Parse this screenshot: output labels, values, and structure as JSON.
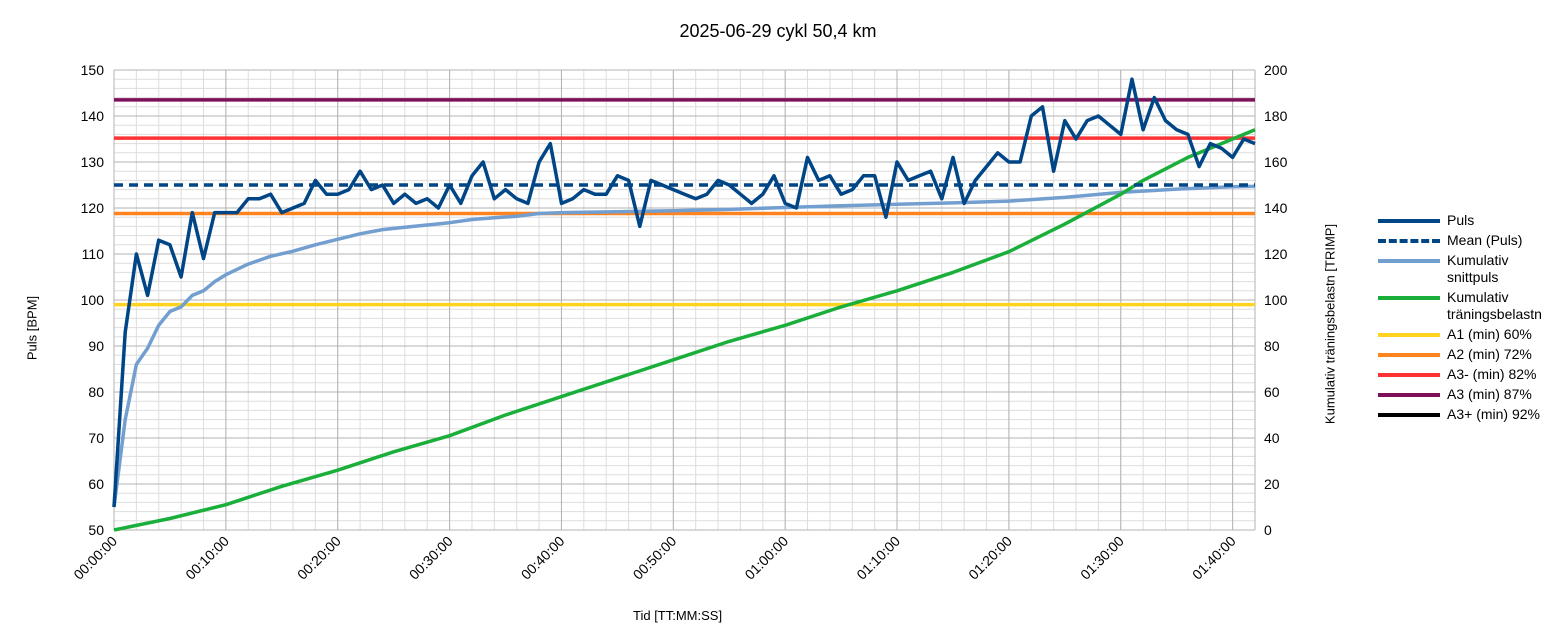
{
  "chart_data": {
    "type": "line",
    "title": "2025-06-29 cykl 50,4 km",
    "xlabel": "Tid [TT:MM:SS]",
    "ylabel": "Puls [BPM]",
    "y2label": "Kumulativ träningsbelastn [TRIMP]",
    "x_unit": "minutes",
    "xlim": [
      0,
      102
    ],
    "xticks": [
      {
        "value": 0,
        "label": "00:00:00"
      },
      {
        "value": 10,
        "label": "00:10:00"
      },
      {
        "value": 20,
        "label": "00:20:00"
      },
      {
        "value": 30,
        "label": "00:30:00"
      },
      {
        "value": 40,
        "label": "00:40:00"
      },
      {
        "value": 50,
        "label": "00:50:00"
      },
      {
        "value": 60,
        "label": "01:00:00"
      },
      {
        "value": 70,
        "label": "01:10:00"
      },
      {
        "value": 80,
        "label": "01:20:00"
      },
      {
        "value": 90,
        "label": "01:30:00"
      },
      {
        "value": 100,
        "label": "01:40:00"
      }
    ],
    "ylim": [
      50,
      150
    ],
    "yticks": [
      50,
      60,
      70,
      80,
      90,
      100,
      110,
      120,
      130,
      140,
      150
    ],
    "y2lim": [
      0,
      200
    ],
    "y2ticks": [
      0,
      20,
      40,
      60,
      80,
      100,
      120,
      140,
      160,
      180,
      200
    ],
    "grid": true,
    "legend_position": "right",
    "series": [
      {
        "name": "Puls",
        "axis": "left",
        "color": "#004586",
        "style": "solid",
        "x": [
          0,
          1,
          2,
          3,
          4,
          5,
          6,
          7,
          8,
          9,
          10,
          11,
          12,
          13,
          14,
          15,
          16,
          17,
          18,
          19,
          20,
          21,
          22,
          23,
          24,
          25,
          26,
          27,
          28,
          29,
          30,
          31,
          32,
          33,
          34,
          35,
          36,
          37,
          38,
          39,
          40,
          41,
          42,
          43,
          44,
          45,
          46,
          47,
          48,
          49,
          50,
          51,
          52,
          53,
          54,
          55,
          56,
          57,
          58,
          59,
          60,
          61,
          62,
          63,
          64,
          65,
          66,
          67,
          68,
          69,
          70,
          71,
          72,
          73,
          74,
          75,
          76,
          77,
          78,
          79,
          80,
          81,
          82,
          83,
          84,
          85,
          86,
          87,
          88,
          89,
          90,
          91,
          92,
          93,
          94,
          95,
          96,
          97,
          98,
          99,
          100,
          101,
          102
        ],
        "y": [
          55,
          93,
          110,
          101,
          113,
          112,
          105,
          119,
          109,
          119,
          119,
          119,
          122,
          122,
          123,
          119,
          120,
          121,
          126,
          123,
          123,
          124,
          128,
          124,
          125,
          121,
          123,
          121,
          122,
          120,
          125,
          121,
          127,
          130,
          122,
          124,
          122,
          121,
          130,
          134,
          121,
          122,
          124,
          123,
          123,
          127,
          126,
          116,
          126,
          125,
          124,
          123,
          122,
          123,
          126,
          125,
          123,
          121,
          123,
          127,
          121,
          120,
          131,
          126,
          127,
          123,
          124,
          127,
          127,
          118,
          130,
          126,
          127,
          128,
          122,
          131,
          121,
          126,
          129,
          132,
          130,
          130,
          140,
          142,
          128,
          139,
          135,
          139,
          140,
          138,
          136,
          148,
          137,
          144,
          139,
          137,
          136,
          129,
          134,
          133,
          131,
          135,
          134
        ]
      },
      {
        "name": "Mean (Puls)",
        "axis": "left",
        "color": "#004586",
        "style": "dashed",
        "x": [
          0,
          102
        ],
        "y": [
          125,
          125
        ]
      },
      {
        "name": "Kumulativ snittpuls",
        "axis": "left",
        "color": "#729fcf",
        "style": "solid",
        "x": [
          0,
          1,
          2,
          3,
          4,
          5,
          6,
          7,
          8,
          9,
          10,
          12,
          14,
          16,
          18,
          20,
          22,
          24,
          26,
          28,
          30,
          32,
          34,
          36,
          38,
          40,
          45,
          50,
          55,
          60,
          65,
          70,
          75,
          80,
          85,
          90,
          95,
          100,
          102
        ],
        "y": [
          55,
          74,
          86,
          89.5,
          94.5,
          97.5,
          98.5,
          101,
          102,
          104,
          105.5,
          107.8,
          109.5,
          110.6,
          112,
          113.2,
          114.4,
          115.3,
          115.8,
          116.3,
          116.8,
          117.5,
          117.9,
          118.2,
          118.8,
          119,
          119.2,
          119.4,
          119.7,
          120.1,
          120.5,
          120.8,
          121.1,
          121.5,
          122.3,
          123.4,
          124.1,
          124.6,
          124.7
        ]
      },
      {
        "name": "Kumulativ träningsbelastn",
        "axis": "right",
        "color": "#1aaf3a",
        "style": "solid",
        "x": [
          0,
          5,
          10,
          15,
          20,
          25,
          30,
          35,
          40,
          45,
          50,
          55,
          60,
          65,
          70,
          75,
          80,
          85,
          90,
          92,
          94,
          96,
          98,
          100,
          102
        ],
        "y": [
          0,
          5,
          11,
          19,
          26,
          34,
          41,
          50,
          58,
          66,
          74,
          82,
          89,
          97,
          104,
          112,
          121,
          133,
          146,
          152,
          157,
          162,
          166,
          170,
          174
        ]
      },
      {
        "name": "A1 (min) 60%",
        "axis": "left",
        "color": "#ffd320",
        "style": "solid",
        "x": [
          0,
          102
        ],
        "y": [
          99,
          99
        ]
      },
      {
        "name": "A2 (min) 72%",
        "axis": "left",
        "color": "#ff8420",
        "style": "solid",
        "x": [
          0,
          102
        ],
        "y": [
          118.8,
          118.8
        ]
      },
      {
        "name": "A3- (min) 82%",
        "axis": "left",
        "color": "#ff3333",
        "style": "solid",
        "x": [
          0,
          102
        ],
        "y": [
          135.2,
          135.2
        ]
      },
      {
        "name": "A3 (min) 87%",
        "axis": "left",
        "color": "#7e0f5a",
        "style": "solid",
        "x": [
          0,
          102
        ],
        "y": [
          143.5,
          143.5
        ]
      },
      {
        "name": "A3+ (min) 92%",
        "axis": "left",
        "color": "#000000",
        "style": "solid",
        "x": [],
        "y": []
      }
    ]
  }
}
